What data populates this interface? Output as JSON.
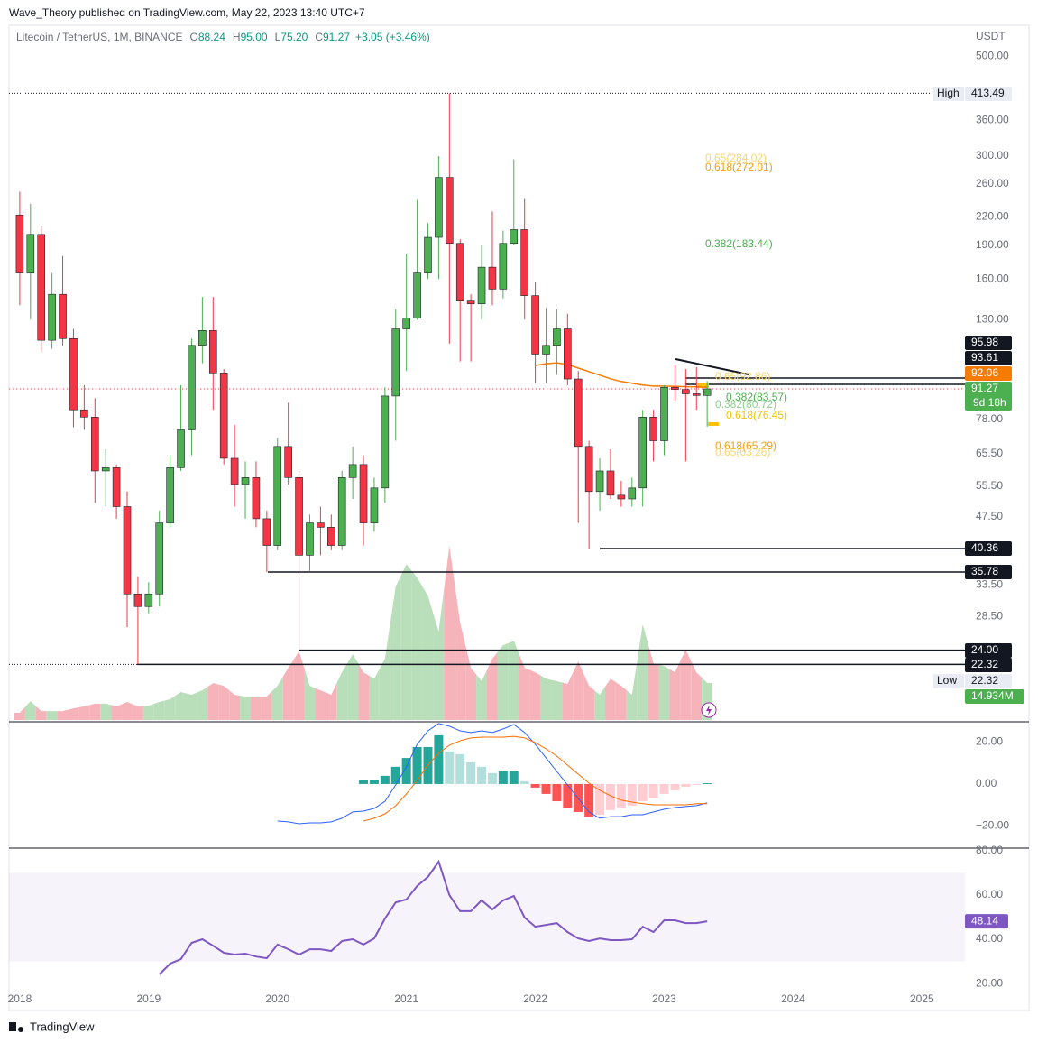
{
  "header": {
    "publisher": "Wave_Theory published on TradingView.com, May 22, 2023 13:40 UTC+7",
    "brand": "TradingView"
  },
  "chart_data": [
    {
      "type": "candlestick",
      "title": "Litecoin / TetherUS, 1M, BINANCE",
      "legend": [
        {
          "key": "O",
          "value": "88.24"
        },
        {
          "key": "H",
          "value": "95.00"
        },
        {
          "key": "L",
          "value": "75.20"
        },
        {
          "key": "C",
          "value": "91.27"
        }
      ],
      "change": "+3.05 (+3.46%)",
      "currency": "USDT",
      "log_scale": true,
      "grid": false,
      "xlim": [
        "2017-12",
        "2025-05"
      ],
      "ylim": [
        16.8,
        580
      ],
      "yticks": [
        {
          "value": 500,
          "label": "500.00"
        },
        {
          "value": 360,
          "label": "360.00"
        },
        {
          "value": 300,
          "label": "300.00"
        },
        {
          "value": 260,
          "label": "260.00"
        },
        {
          "value": 220,
          "label": "220.00"
        },
        {
          "value": 190,
          "label": "190.00"
        },
        {
          "value": 160,
          "label": "160.00"
        },
        {
          "value": 130,
          "label": "130.00"
        },
        {
          "value": 78,
          "label": "78.00"
        },
        {
          "value": 65.5,
          "label": "65.50"
        },
        {
          "value": 55.5,
          "label": "55.50"
        },
        {
          "value": 47.5,
          "label": "47.50"
        },
        {
          "value": 33.5,
          "label": "33.50"
        },
        {
          "value": 28.5,
          "label": "28.50"
        }
      ],
      "x": [
        "2018-01",
        "2018-02",
        "2018-03",
        "2018-04",
        "2018-05",
        "2018-06",
        "2018-07",
        "2018-08",
        "2018-09",
        "2018-10",
        "2018-11",
        "2018-12",
        "2019-01",
        "2019-02",
        "2019-03",
        "2019-04",
        "2019-05",
        "2019-06",
        "2019-07",
        "2019-08",
        "2019-09",
        "2019-10",
        "2019-11",
        "2019-12",
        "2020-01",
        "2020-02",
        "2020-03",
        "2020-04",
        "2020-05",
        "2020-06",
        "2020-07",
        "2020-08",
        "2020-09",
        "2020-10",
        "2020-11",
        "2020-12",
        "2021-01",
        "2021-02",
        "2021-03",
        "2021-04",
        "2021-05",
        "2021-06",
        "2021-07",
        "2021-08",
        "2021-09",
        "2021-10",
        "2021-11",
        "2021-12",
        "2022-01",
        "2022-02",
        "2022-03",
        "2022-04",
        "2022-05",
        "2022-06",
        "2022-07",
        "2022-08",
        "2022-09",
        "2022-10",
        "2022-11",
        "2022-12",
        "2023-01",
        "2023-02",
        "2023-03",
        "2023-04",
        "2023-05"
      ],
      "open": [
        222,
        165,
        201,
        117,
        148,
        118,
        82,
        79,
        60,
        61,
        50,
        32,
        30,
        32,
        46,
        61,
        74,
        114,
        123,
        99,
        64,
        56,
        58,
        47,
        41,
        68,
        58,
        39,
        46,
        45,
        41,
        58,
        62,
        46,
        55,
        88,
        124,
        131,
        165,
        198,
        269,
        192,
        143,
        141,
        170,
        152,
        192,
        206,
        147,
        109,
        114,
        124,
        96,
        68,
        54,
        60,
        53,
        52,
        55,
        79,
        70,
        92,
        91,
        89,
        88.24
      ],
      "high": [
        250,
        235,
        210,
        165,
        180,
        124,
        93,
        87,
        67,
        62,
        54,
        35,
        34,
        49,
        65,
        93,
        118,
        146,
        146,
        101,
        76,
        63,
        63,
        49,
        71,
        85,
        60,
        48,
        50,
        48,
        60,
        68,
        65,
        58,
        92,
        137,
        182,
        240,
        213,
        300,
        413.49,
        196,
        148,
        190,
        226,
        205,
        295,
        241,
        158,
        138,
        137,
        134,
        100,
        70,
        64,
        67,
        57,
        58,
        82,
        82,
        93,
        103,
        101,
        102,
        95
      ],
      "low": [
        140,
        130,
        110,
        112,
        114,
        75,
        74,
        51,
        50,
        47,
        27,
        22.32,
        29,
        30,
        45,
        60,
        65,
        104,
        82,
        62,
        50,
        47,
        45,
        35.78,
        40,
        56,
        24,
        36,
        39,
        40,
        40,
        52,
        41,
        44,
        51,
        70,
        100,
        130,
        160,
        160,
        115,
        105,
        105,
        130,
        140,
        145,
        190,
        130,
        94,
        94,
        98,
        93,
        46,
        40.36,
        49,
        52,
        50,
        50,
        50,
        63,
        65,
        86,
        63,
        82,
        75.2
      ],
      "close": [
        165,
        201,
        117,
        148,
        118,
        82,
        79,
        60,
        61,
        50,
        32,
        30,
        32,
        46,
        61,
        74,
        114,
        123,
        99,
        64,
        56,
        58,
        47,
        41,
        68,
        58,
        39,
        46,
        45,
        41,
        58,
        62,
        46,
        55,
        88,
        124,
        131,
        165,
        198,
        269,
        192,
        143,
        141,
        170,
        152,
        192,
        206,
        147,
        109,
        114,
        124,
        96,
        68,
        54,
        60,
        53,
        52,
        55,
        79,
        70,
        92,
        91,
        89,
        88.24,
        91.27
      ],
      "colors": {
        "up": "#4caf50",
        "down": "#f23645",
        "outline": "#1e222d"
      },
      "volume": {
        "ylim": [
          0,
          280
        ],
        "colors": {
          "up": "#b9dfba",
          "down": "#f7b3ba"
        },
        "last_label": "14.934M",
        "values": [
          2.9,
          7.6,
          3.6,
          3.6,
          3.6,
          4.7,
          5.5,
          6.6,
          6.6,
          5.5,
          7.3,
          5.5,
          5.8,
          7.3,
          8.4,
          11.3,
          10.2,
          12.0,
          14.9,
          13.8,
          10.2,
          9.5,
          9.5,
          9.5,
          13.8,
          21.1,
          27.7,
          13.8,
          12.0,
          10.2,
          19.3,
          26.6,
          19.3,
          16.7,
          24.8,
          53.9,
          63.0,
          57.5,
          50.2,
          35.7,
          70.3,
          39.3,
          21.1,
          15.7,
          24.8,
          30.2,
          32.0,
          21.1,
          19.3,
          16.7,
          15.7,
          14.6,
          23.7,
          13.8,
          10.2,
          16.7,
          13.8,
          10.2,
          38.6,
          22.9,
          21.8,
          19.3,
          28.4,
          19.3,
          14.934
        ]
      },
      "ma": {
        "color": "#f57c00",
        "x": [
          "2022-01",
          "2022-02",
          "2022-03",
          "2022-04",
          "2022-05",
          "2022-06",
          "2022-07",
          "2022-08",
          "2022-09",
          "2022-10",
          "2022-11",
          "2022-12",
          "2023-01",
          "2023-02",
          "2023-03",
          "2023-04",
          "2023-05"
        ],
        "values": [
          102.9,
          103.8,
          104.3,
          103.4,
          101.5,
          99.7,
          97.9,
          96.1,
          94.8,
          93.9,
          93.1,
          92.6,
          92.6,
          92.4,
          92.3,
          92.2,
          92.06
        ]
      },
      "price_labels": [
        {
          "value": 413.49,
          "label": "413.49",
          "tag": "High",
          "color": "#e9ecf2"
        },
        {
          "value": 95.98,
          "label": "95.98",
          "color": "#131722"
        },
        {
          "value": 93.61,
          "label": "93.61",
          "color": "#131722"
        },
        {
          "value": 92.06,
          "label": "92.06",
          "color": "#f57c00"
        },
        {
          "value": 91.27,
          "label": "91.27",
          "countdown": "9d 18h",
          "color": "#4caf50"
        },
        {
          "value": 40.36,
          "label": "40.36",
          "color": "#131722"
        },
        {
          "value": 35.78,
          "label": "35.78",
          "color": "#131722"
        },
        {
          "value": 24,
          "label": "24.00",
          "color": "#131722"
        },
        {
          "value": 22.32,
          "label": "22.32",
          "color": "#131722"
        },
        {
          "value": 22.32,
          "label": "22.32",
          "tag": "Low",
          "color": "#e9ecf2"
        }
      ],
      "annotations": [
        {
          "text": "0.65(284.02)",
          "color": "#f7d774"
        },
        {
          "text": "0.618(272.01)",
          "color": "#f59e0b"
        },
        {
          "text": "0.382(183.44)",
          "color": "#4caf50"
        },
        {
          "text": "0.65(92.86)",
          "color": "#f7d774"
        },
        {
          "text": "0.382(83.57)",
          "color": "#4caf50"
        },
        {
          "text": "0.382(80.72)",
          "color": "#8fce91"
        },
        {
          "text": "0.618(76.45)",
          "color": "#f2c200"
        },
        {
          "text": "0.618(65.29)",
          "color": "#f59e0b"
        },
        {
          "text": "0.65(63.26)",
          "color": "#f7d774"
        }
      ]
    },
    {
      "type": "macd",
      "xlim": [
        "2017-12",
        "2025-05"
      ],
      "ylim": [
        -30.5,
        29.6
      ],
      "yticks": [
        {
          "value": 20,
          "label": "20.00"
        },
        {
          "value": 0,
          "label": "0.00"
        },
        {
          "value": -20,
          "label": "−20.00"
        }
      ],
      "x": [
        "2020-01",
        "2020-02",
        "2020-03",
        "2020-04",
        "2020-05",
        "2020-06",
        "2020-07",
        "2020-08",
        "2020-09",
        "2020-10",
        "2020-11",
        "2020-12",
        "2021-01",
        "2021-02",
        "2021-03",
        "2021-04",
        "2021-05",
        "2021-06",
        "2021-07",
        "2021-08",
        "2021-09",
        "2021-10",
        "2021-11",
        "2021-12",
        "2022-01",
        "2022-02",
        "2022-03",
        "2022-04",
        "2022-05",
        "2022-06",
        "2022-07",
        "2022-08",
        "2022-09",
        "2022-10",
        "2022-11",
        "2022-12",
        "2023-01",
        "2023-02",
        "2023-03",
        "2023-04",
        "2023-05"
      ],
      "series": [
        {
          "color": "#2962ff",
          "values": [
            -17.6,
            -18.0,
            -18.9,
            -18.5,
            -18.5,
            -18.0,
            -16.3,
            -13.3,
            -12.9,
            -11.6,
            -8.2,
            -0.4,
            8.2,
            18.9,
            25.3,
            28.8,
            27.5,
            25.3,
            24.5,
            25.3,
            24.5,
            26.2,
            28.3,
            24.5,
            18.9,
            12.4,
            6.0,
            -0.4,
            -6.9,
            -13.3,
            -16.3,
            -15.5,
            -15.5,
            -14.6,
            -14.6,
            -13.3,
            -12.0,
            -11.2,
            -10.7,
            -10.3,
            -9.0
          ]
        },
        {
          "color": "#ff6d00",
          "values": [
            null,
            null,
            null,
            null,
            null,
            null,
            null,
            null,
            -17.6,
            -16.3,
            -14.2,
            -10.3,
            -4.7,
            1.7,
            9.0,
            14.6,
            18.5,
            20.6,
            21.9,
            22.3,
            22.3,
            22.3,
            22.7,
            21.9,
            19.7,
            16.7,
            13.3,
            9.0,
            4.7,
            0.4,
            -3.0,
            -5.6,
            -7.7,
            -8.6,
            -9.4,
            -9.9,
            -9.9,
            -9.9,
            -9.9,
            -9.4,
            -9.4
          ]
        }
      ],
      "histogram": {
        "colors": {
          "pos_up": "#26a69a",
          "pos_down": "#b2dfdb",
          "neg_down": "#ff5252",
          "neg_up": "#ffcdd2"
        },
        "values": [
          null,
          null,
          null,
          null,
          null,
          null,
          null,
          null,
          2.1,
          2.1,
          3.9,
          8.2,
          12.4,
          17.6,
          17.6,
          23.2,
          15.5,
          14.2,
          10.3,
          8.2,
          5.2,
          6.0,
          6.0,
          1.3,
          -1.7,
          -4.7,
          -8.2,
          -11.2,
          -13.3,
          -15.5,
          -14.6,
          -12.4,
          -11.2,
          -10.3,
          -8.2,
          -6.9,
          -4.7,
          -3.0,
          -1.3,
          -0.4,
          0.4
        ]
      }
    },
    {
      "type": "rsi",
      "xlim": [
        "2017-12",
        "2025-05"
      ],
      "ylim": [
        18,
        81.2
      ],
      "band": [
        30,
        70
      ],
      "color": "#7e57c2",
      "last_label": "48.14",
      "yticks": [
        {
          "value": 80,
          "label": "80.00"
        },
        {
          "value": 60,
          "label": "60.00"
        },
        {
          "value": 40,
          "label": "40.00"
        },
        {
          "value": 20,
          "label": "20.00"
        }
      ],
      "xticks": [
        {
          "value": "2018-01",
          "label": "2018"
        },
        {
          "value": "2019-01",
          "label": "2019"
        },
        {
          "value": "2020-01",
          "label": "2020"
        },
        {
          "value": "2021-01",
          "label": "2021"
        },
        {
          "value": "2022-01",
          "label": "2022"
        },
        {
          "value": "2023-01",
          "label": "2023"
        },
        {
          "value": "2024-01",
          "label": "2024"
        },
        {
          "value": "2025-01",
          "label": "2025"
        }
      ],
      "x": [
        "2019-02",
        "2019-03",
        "2019-04",
        "2019-05",
        "2019-06",
        "2019-07",
        "2019-08",
        "2019-09",
        "2019-10",
        "2019-11",
        "2019-12",
        "2020-01",
        "2020-02",
        "2020-03",
        "2020-04",
        "2020-05",
        "2020-06",
        "2020-07",
        "2020-08",
        "2020-09",
        "2020-10",
        "2020-11",
        "2020-12",
        "2021-01",
        "2021-02",
        "2021-03",
        "2021-04",
        "2021-05",
        "2021-06",
        "2021-07",
        "2021-08",
        "2021-09",
        "2021-10",
        "2021-11",
        "2021-12",
        "2022-01",
        "2022-02",
        "2022-03",
        "2022-04",
        "2022-05",
        "2022-06",
        "2022-07",
        "2022-08",
        "2022-09",
        "2022-10",
        "2022-11",
        "2022-12",
        "2023-01",
        "2023-02",
        "2023-03",
        "2023-04",
        "2023-05"
      ],
      "values": [
        24.1,
        29.0,
        31.0,
        38.4,
        40.0,
        37.1,
        33.9,
        33.1,
        33.5,
        32.2,
        31.4,
        37.6,
        35.5,
        33.1,
        35.5,
        35.5,
        34.7,
        39.2,
        40.0,
        37.6,
        40.4,
        49.4,
        56.7,
        58.0,
        64.1,
        68.2,
        75.1,
        60.0,
        52.7,
        52.7,
        57.6,
        53.5,
        57.6,
        59.6,
        49.8,
        45.7,
        46.5,
        47.3,
        43.3,
        40.4,
        39.2,
        40.4,
        39.6,
        39.6,
        40.0,
        45.7,
        43.3,
        48.6,
        48.6,
        47.3,
        47.3,
        48.14
      ]
    }
  ]
}
